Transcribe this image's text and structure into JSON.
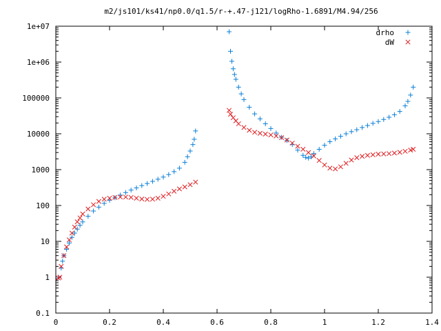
{
  "chart_data": {
    "type": "scatter",
    "title": "m2/js101/ks41/np0.0/q1.5/r-+.47-j121/logRho-1.6891/M4.94/256",
    "xlim": [
      0,
      1.4
    ],
    "ylim": [
      0.1,
      10000000
    ],
    "yscale": "log",
    "grid": false,
    "legend_position": "top-right",
    "x_ticks": [
      "0",
      "0.2",
      "0.4",
      "0.6",
      "0.8",
      "1",
      "1.2",
      "1.4"
    ],
    "y_ticks": [
      "0.1",
      "1",
      "10",
      "100",
      "1000",
      "10000",
      "100000",
      "1e+06",
      "1e+07"
    ],
    "series": [
      {
        "name": "drho",
        "marker": "+",
        "color": "#0a7fd6",
        "points": [
          [
            0.01,
            1
          ],
          [
            0.02,
            1.8
          ],
          [
            0.025,
            2.8
          ],
          [
            0.03,
            4
          ],
          [
            0.04,
            6
          ],
          [
            0.05,
            9
          ],
          [
            0.06,
            13
          ],
          [
            0.07,
            17
          ],
          [
            0.08,
            22
          ],
          [
            0.09,
            28
          ],
          [
            0.1,
            35
          ],
          [
            0.12,
            50
          ],
          [
            0.14,
            70
          ],
          [
            0.16,
            90
          ],
          [
            0.18,
            115
          ],
          [
            0.2,
            140
          ],
          [
            0.22,
            165
          ],
          [
            0.24,
            195
          ],
          [
            0.26,
            230
          ],
          [
            0.28,
            270
          ],
          [
            0.3,
            310
          ],
          [
            0.32,
            360
          ],
          [
            0.34,
            410
          ],
          [
            0.36,
            470
          ],
          [
            0.38,
            540
          ],
          [
            0.4,
            620
          ],
          [
            0.42,
            730
          ],
          [
            0.44,
            880
          ],
          [
            0.46,
            1100
          ],
          [
            0.48,
            1600
          ],
          [
            0.49,
            2300
          ],
          [
            0.5,
            3300
          ],
          [
            0.51,
            5000
          ],
          [
            0.515,
            7000
          ],
          [
            0.52,
            12000
          ],
          [
            0.645,
            7000000
          ],
          [
            0.65,
            2000000
          ],
          [
            0.655,
            1050000
          ],
          [
            0.66,
            650000
          ],
          [
            0.665,
            450000
          ],
          [
            0.67,
            330000
          ],
          [
            0.68,
            200000
          ],
          [
            0.69,
            130000
          ],
          [
            0.7,
            90000
          ],
          [
            0.72,
            55000
          ],
          [
            0.74,
            36000
          ],
          [
            0.76,
            26000
          ],
          [
            0.78,
            19000
          ],
          [
            0.8,
            14000
          ],
          [
            0.82,
            10500
          ],
          [
            0.84,
            8000
          ],
          [
            0.86,
            6500
          ],
          [
            0.88,
            5000
          ],
          [
            0.9,
            3500
          ],
          [
            0.92,
            2500
          ],
          [
            0.93,
            2200
          ],
          [
            0.94,
            2100
          ],
          [
            0.95,
            2300
          ],
          [
            0.96,
            2800
          ],
          [
            0.98,
            3700
          ],
          [
            1.0,
            4800
          ],
          [
            1.02,
            6000
          ],
          [
            1.04,
            7200
          ],
          [
            1.06,
            8500
          ],
          [
            1.08,
            10000
          ],
          [
            1.1,
            11500
          ],
          [
            1.12,
            13000
          ],
          [
            1.14,
            15000
          ],
          [
            1.16,
            17000
          ],
          [
            1.18,
            19500
          ],
          [
            1.2,
            22000
          ],
          [
            1.22,
            25000
          ],
          [
            1.24,
            29000
          ],
          [
            1.26,
            34000
          ],
          [
            1.28,
            42000
          ],
          [
            1.3,
            60000
          ],
          [
            1.31,
            80000
          ],
          [
            1.32,
            120000
          ],
          [
            1.33,
            200000
          ]
        ]
      },
      {
        "name": "dW",
        "marker": "x",
        "color": "#e0191c",
        "points": [
          [
            0.01,
            0.95
          ],
          [
            0.015,
            1
          ],
          [
            0.02,
            2
          ],
          [
            0.03,
            4
          ],
          [
            0.04,
            7
          ],
          [
            0.05,
            11
          ],
          [
            0.06,
            17
          ],
          [
            0.07,
            25
          ],
          [
            0.08,
            35
          ],
          [
            0.09,
            45
          ],
          [
            0.1,
            58
          ],
          [
            0.12,
            80
          ],
          [
            0.14,
            105
          ],
          [
            0.16,
            130
          ],
          [
            0.18,
            150
          ],
          [
            0.2,
            160
          ],
          [
            0.22,
            168
          ],
          [
            0.24,
            172
          ],
          [
            0.26,
            172
          ],
          [
            0.28,
            168
          ],
          [
            0.3,
            160
          ],
          [
            0.32,
            152
          ],
          [
            0.34,
            148
          ],
          [
            0.36,
            150
          ],
          [
            0.38,
            160
          ],
          [
            0.4,
            180
          ],
          [
            0.42,
            210
          ],
          [
            0.44,
            250
          ],
          [
            0.46,
            290
          ],
          [
            0.48,
            330
          ],
          [
            0.5,
            380
          ],
          [
            0.52,
            450
          ],
          [
            0.645,
            45000
          ],
          [
            0.65,
            35000
          ],
          [
            0.66,
            28000
          ],
          [
            0.67,
            23000
          ],
          [
            0.68,
            19000
          ],
          [
            0.7,
            15000
          ],
          [
            0.72,
            12500
          ],
          [
            0.74,
            11000
          ],
          [
            0.76,
            10300
          ],
          [
            0.78,
            9800
          ],
          [
            0.8,
            9300
          ],
          [
            0.82,
            8700
          ],
          [
            0.84,
            7800
          ],
          [
            0.86,
            6700
          ],
          [
            0.88,
            5500
          ],
          [
            0.9,
            4500
          ],
          [
            0.92,
            3700
          ],
          [
            0.94,
            3000
          ],
          [
            0.96,
            2400
          ],
          [
            0.98,
            1800
          ],
          [
            1.0,
            1350
          ],
          [
            1.02,
            1100
          ],
          [
            1.04,
            1050
          ],
          [
            1.06,
            1200
          ],
          [
            1.08,
            1500
          ],
          [
            1.1,
            1850
          ],
          [
            1.12,
            2150
          ],
          [
            1.14,
            2350
          ],
          [
            1.16,
            2500
          ],
          [
            1.18,
            2600
          ],
          [
            1.2,
            2700
          ],
          [
            1.22,
            2750
          ],
          [
            1.24,
            2800
          ],
          [
            1.26,
            2900
          ],
          [
            1.28,
            3050
          ],
          [
            1.3,
            3250
          ],
          [
            1.32,
            3500
          ],
          [
            1.33,
            3700
          ]
        ]
      }
    ]
  }
}
